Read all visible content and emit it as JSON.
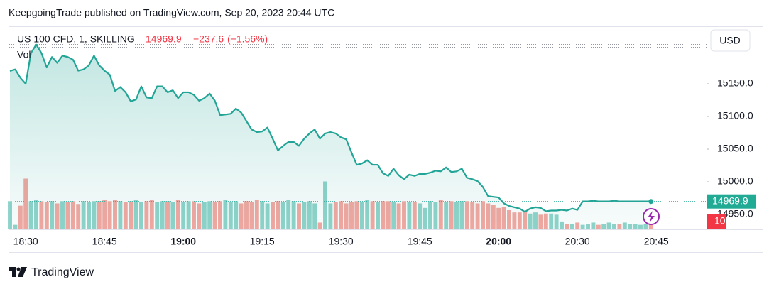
{
  "title": "KeepgoingTrade published on TradingView.com, Sep 20, 2023 20:44 UTC",
  "footer": "TradingView",
  "currency": "USD",
  "chart_data": {
    "type": "line",
    "change": "−237.6",
    "change_pct": "(−1.56%)",
    "categories": [
      null,
      null,
      null,
      "18:30",
      null,
      null,
      null,
      null,
      null,
      null,
      null,
      null,
      null,
      null,
      null,
      null,
      null,
      null,
      "18:45",
      null,
      null,
      null,
      null,
      null,
      null,
      null,
      null,
      null,
      null,
      null,
      null,
      null,
      null,
      "19:00",
      null,
      null,
      null,
      null,
      null,
      null,
      null,
      null,
      null,
      null,
      null,
      null,
      null,
      null,
      "19:15",
      null,
      null,
      null,
      null,
      null,
      null,
      null,
      null,
      null,
      null,
      null,
      null,
      null,
      null,
      "19:30",
      null,
      null,
      null,
      null,
      null,
      null,
      null,
      null,
      null,
      null,
      null,
      null,
      null,
      null,
      "19:45",
      null,
      null,
      null,
      null,
      null,
      null,
      null,
      null,
      null,
      null,
      null,
      null,
      null,
      null,
      "20:00",
      null,
      null,
      null,
      null,
      null,
      null,
      null,
      null,
      null,
      null,
      null,
      null,
      null,
      null,
      "20:30",
      null,
      null,
      null,
      null,
      null,
      null,
      null,
      null,
      null,
      null,
      null,
      null,
      null,
      null,
      "20:45"
    ],
    "series": [
      {
        "name": "US 100 CFD, 1, SKILLING",
        "color": "#22a596",
        "values": [
          15169.6,
          15172,
          15159,
          15150,
          15197,
          15210,
          15197,
          15175,
          15191,
          15182,
          15193,
          15191,
          15187,
          15170,
          15172,
          15178,
          15193,
          15178,
          15170,
          15164,
          15139,
          15145,
          15137,
          15123,
          15126,
          15146,
          15129,
          15128,
          15146,
          15146,
          15137,
          15140,
          15128,
          15137,
          15137,
          15133,
          15124,
          15128,
          15135,
          15124,
          15102,
          15103,
          15104,
          15112,
          15106,
          15093,
          15080,
          15076,
          15077,
          15083,
          15066,
          15048,
          15055,
          15061,
          15061,
          15055,
          15066,
          15074,
          15080,
          15066,
          15074,
          15076,
          15074,
          15068,
          15065,
          15045,
          15026,
          15028,
          15033,
          15026,
          15026,
          15013,
          15009,
          15020,
          15010,
          15004,
          15011,
          15009,
          15012,
          15012,
          15014,
          15017,
          15016,
          15022,
          15015,
          15016,
          15020,
          15006,
          15004,
          15001,
          14992,
          14978,
          14977,
          14976,
          14967,
          14963,
          14961,
          14959,
          14954,
          14959,
          14961,
          14960,
          14955,
          14956,
          14956,
          14957,
          14956,
          14959,
          14957,
          14970,
          14970,
          14971,
          14970,
          14970,
          14970,
          14971,
          14970,
          14970,
          14970,
          14970,
          14970,
          14970,
          14969.9,
          null
        ]
      },
      {
        "name": "Vol",
        "axis": "y2",
        "up_color": "#8fd3ca",
        "down_color": "#f5a6a0",
        "values": [
          50,
          8,
          42,
          90,
          50,
          52,
          50,
          48,
          50,
          46,
          50,
          48,
          50,
          45,
          50,
          48,
          50,
          50,
          52,
          50,
          52,
          50,
          48,
          50,
          52,
          48,
          50,
          52,
          48,
          50,
          50,
          48,
          52,
          48,
          50,
          50,
          46,
          48,
          50,
          48,
          50,
          52,
          48,
          50,
          46,
          50,
          48,
          52,
          50,
          46,
          48,
          50,
          48,
          52,
          50,
          46,
          48,
          50,
          46,
          12,
          85,
          46,
          48,
          50,
          46,
          48,
          50,
          48,
          52,
          50,
          48,
          50,
          50,
          48,
          46,
          50,
          48,
          48,
          46,
          38,
          50,
          48,
          52,
          48,
          50,
          48,
          50,
          50,
          48,
          46,
          50,
          46,
          44,
          38,
          40,
          34,
          30,
          30,
          32,
          28,
          30,
          26,
          28,
          28,
          26,
          14,
          10,
          10,
          12,
          8,
          10,
          12,
          8,
          10,
          12,
          10,
          10,
          12,
          10,
          10,
          8,
          10,
          10,
          null
        ]
      }
    ],
    "ylim": [
      14927.2,
      15238.0
    ],
    "yticks": [
      {
        "value": 14950,
        "label": "14950.0"
      },
      {
        "value": 15000,
        "label": "15000.0"
      },
      {
        "value": 15050,
        "label": "15050.0"
      },
      {
        "value": 15100,
        "label": "15100.0"
      },
      {
        "value": 15150,
        "label": "15150.0"
      }
    ],
    "y2lim": [
      0,
      360
    ],
    "area_fill": true,
    "up_color": "#22ab94",
    "down_color": "#f23645"
  }
}
